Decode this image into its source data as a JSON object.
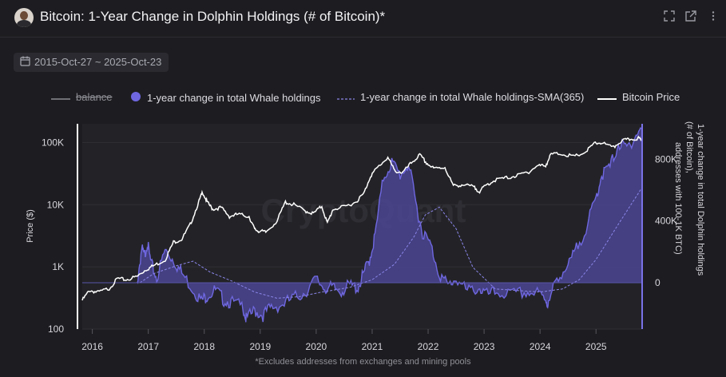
{
  "header": {
    "title": "Bitcoin: 1-Year Change in Dolphin Holdings (# of Bitcoin)*",
    "icons": [
      "fullscreen-icon",
      "open-external-icon",
      "more-options-icon"
    ]
  },
  "date_range": "2015-Oct-27 ~ 2025-Oct-23",
  "footnote": "*Excludes addresses from exchanges and mining pools",
  "watermark": "CryptoQuant",
  "colors": {
    "background": "#1d1d21",
    "plot_bg": "#232327",
    "fill": "#6f67e0",
    "fill_area": "#4a4592",
    "price": "#ffffff",
    "sma": "#8c85ea",
    "balance": "#6f6f76"
  },
  "chart_data": {
    "type": "line",
    "title": "Bitcoin: 1-Year Change in Dolphin Holdings (# of Bitcoin)*",
    "legend": [
      {
        "name": "balance",
        "style": "line",
        "disabled": true
      },
      {
        "name": "1-year change in total Whale holdings",
        "style": "area"
      },
      {
        "name": "1-year change in total Whale holdings-SMA(365)",
        "style": "dashed-line"
      },
      {
        "name": "Bitcoin Price",
        "style": "line"
      }
    ],
    "legend_position": "top",
    "x_ticks": [
      "2016",
      "2017",
      "2018",
      "2019",
      "2020",
      "2021",
      "2022",
      "2023",
      "2024",
      "2025"
    ],
    "x_range": [
      2015.82,
      2025.81
    ],
    "y_left": {
      "label": "Price ($)",
      "scale": "log",
      "range": [
        100,
        200000
      ],
      "ticks": [
        "100",
        "1K",
        "10K",
        "100K"
      ],
      "tick_values": [
        100,
        1000,
        10000,
        100000
      ]
    },
    "y_right": {
      "label": "1-year change in total Dolphin holdings (# of Bitcoin), addresses with 100-1K BTC)",
      "range": [
        -300000,
        1030000
      ],
      "ticks": [
        "800K",
        "400K",
        "0"
      ],
      "tick_values": [
        800000,
        400000,
        0
      ]
    },
    "series": [
      {
        "name": "Bitcoin Price",
        "axis": "left",
        "x": [
          2015.82,
          2015.95,
          2016.1,
          2016.3,
          2016.45,
          2016.6,
          2016.8,
          2016.95,
          2017.1,
          2017.3,
          2017.45,
          2017.6,
          2017.75,
          2017.9,
          2017.97,
          2018.05,
          2018.15,
          2018.3,
          2018.45,
          2018.6,
          2018.8,
          2018.9,
          2018.97,
          2019.1,
          2019.3,
          2019.45,
          2019.6,
          2019.8,
          2019.95,
          2020.1,
          2020.2,
          2020.3,
          2020.5,
          2020.7,
          2020.85,
          2020.97,
          2021.1,
          2021.28,
          2021.4,
          2021.55,
          2021.7,
          2021.85,
          2021.97,
          2022.1,
          2022.3,
          2022.45,
          2022.6,
          2022.8,
          2022.92,
          2023.05,
          2023.2,
          2023.4,
          2023.6,
          2023.8,
          2023.95,
          2024.1,
          2024.2,
          2024.4,
          2024.6,
          2024.8,
          2024.97,
          2025.1,
          2025.3,
          2025.45,
          2025.6,
          2025.75,
          2025.81
        ],
        "values": [
          290,
          420,
          390,
          450,
          650,
          620,
          700,
          900,
          1050,
          1300,
          2500,
          2800,
          4800,
          11000,
          16000,
          11000,
          8500,
          9000,
          6500,
          7000,
          6500,
          4000,
          3800,
          3600,
          5500,
          11000,
          10000,
          8000,
          7200,
          9500,
          5000,
          8500,
          9200,
          11000,
          15000,
          29000,
          40000,
          58000,
          35000,
          33000,
          47000,
          63000,
          47000,
          38000,
          40000,
          20000,
          21000,
          19500,
          16500,
          21000,
          25000,
          27000,
          29500,
          34000,
          42000,
          43000,
          65000,
          66000,
          59000,
          69000,
          96000,
          100000,
          82000,
          106000,
          112000,
          118000,
          111000
        ]
      },
      {
        "name": "1-year change in total Whale holdings",
        "axis": "right",
        "x": [
          2015.82,
          2016.8,
          2016.88,
          2016.93,
          2016.98,
          2017.05,
          2017.15,
          2017.3,
          2017.45,
          2017.6,
          2017.8,
          2017.95,
          2018.05,
          2018.2,
          2018.35,
          2018.5,
          2018.7,
          2018.75,
          2018.9,
          2019.05,
          2019.2,
          2019.4,
          2019.6,
          2019.8,
          2020.0,
          2020.15,
          2020.3,
          2020.45,
          2020.6,
          2020.75,
          2020.85,
          2020.95,
          2021.05,
          2021.2,
          2021.35,
          2021.5,
          2021.65,
          2021.8,
          2021.9,
          2022.05,
          2022.2,
          2022.35,
          2022.5,
          2022.7,
          2022.9,
          2023.05,
          2023.25,
          2023.5,
          2023.75,
          2023.95,
          2024.1,
          2024.15,
          2024.3,
          2024.5,
          2024.65,
          2024.85,
          2025.0,
          2025.1,
          2025.25,
          2025.4,
          2025.55,
          2025.7,
          2025.81
        ],
        "values": [
          null,
          0,
          220000,
          170000,
          260000,
          120000,
          30000,
          210000,
          150000,
          60000,
          -40000,
          -120000,
          -80000,
          -50000,
          -110000,
          -130000,
          -160000,
          -240000,
          -180000,
          -210000,
          -160000,
          -140000,
          -100000,
          -60000,
          20000,
          -30000,
          -40000,
          -50000,
          -20000,
          -30000,
          60000,
          150000,
          300000,
          680000,
          780000,
          700000,
          770000,
          480000,
          330000,
          240000,
          60000,
          -20000,
          30000,
          -60000,
          -30000,
          -80000,
          -60000,
          -80000,
          -60000,
          -70000,
          -100000,
          -150000,
          40000,
          100000,
          220000,
          380000,
          550000,
          700000,
          750000,
          900000,
          870000,
          950000,
          1000000
        ]
      },
      {
        "name": "1-year change in total Whale holdings-SMA(365)",
        "axis": "right",
        "x": [
          2016.85,
          2017.1,
          2017.5,
          2017.8,
          2018.1,
          2018.5,
          2018.9,
          2019.3,
          2019.7,
          2020.1,
          2020.6,
          2021.0,
          2021.4,
          2021.75,
          2021.95,
          2022.2,
          2022.5,
          2022.8,
          2023.2,
          2023.6,
          2024.0,
          2024.4,
          2024.7,
          2025.0,
          2025.4,
          2025.81
        ],
        "values": [
          0,
          60000,
          110000,
          140000,
          70000,
          10000,
          -60000,
          -100000,
          -90000,
          -60000,
          -30000,
          20000,
          120000,
          300000,
          440000,
          490000,
          350000,
          100000,
          -40000,
          -50000,
          -60000,
          -40000,
          20000,
          150000,
          380000,
          610000
        ]
      }
    ]
  }
}
